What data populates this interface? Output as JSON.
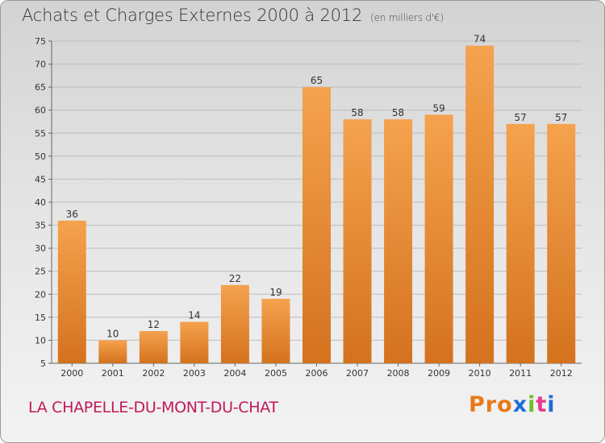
{
  "header": {
    "title": "Achats et Charges Externes 2000 à 2012",
    "subtitle": "(en milliers d'€)"
  },
  "footer": {
    "commune": "LA CHAPELLE-DU-MONT-DU-CHAT",
    "logo_text": "Proxiti"
  },
  "colors": {
    "bar_top": "#f5a24e",
    "bar_bottom": "#d4721e",
    "commune_text": "#c2185b",
    "logo_letters": [
      "#e8791a",
      "#e8791a",
      "#e8791a",
      "#1d6fd6",
      "#6bbf2a",
      "#e83a8a",
      "#1d6fd6"
    ]
  },
  "chart_data": {
    "type": "bar",
    "categories": [
      "2000",
      "2001",
      "2002",
      "2003",
      "2004",
      "2005",
      "2006",
      "2007",
      "2008",
      "2009",
      "2010",
      "2011",
      "2012"
    ],
    "values": [
      36,
      10,
      12,
      14,
      22,
      19,
      65,
      58,
      58,
      59,
      74,
      57,
      57
    ],
    "title": "Achats et Charges Externes 2000 à 2012",
    "subtitle": "(en milliers d'€)",
    "xlabel": "",
    "ylabel": "",
    "ylim": [
      5,
      75
    ],
    "yticks": [
      5,
      10,
      15,
      20,
      25,
      30,
      35,
      40,
      45,
      50,
      55,
      60,
      65,
      70,
      75
    ],
    "grid": true,
    "data_labels": true
  }
}
